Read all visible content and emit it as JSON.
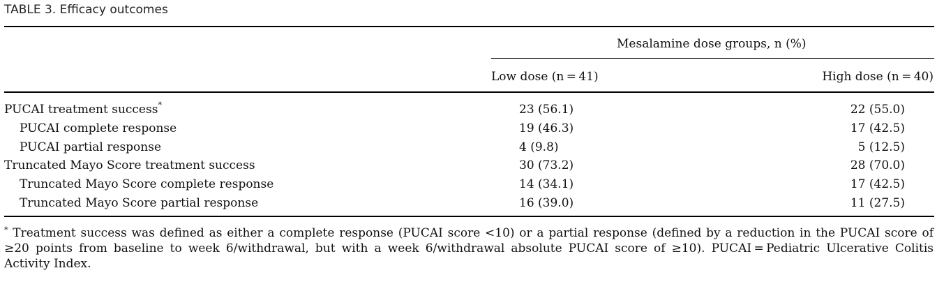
{
  "caption": "TABLE 3.  Efficacy outcomes",
  "header": {
    "group": "Mesalamine dose groups, n (%)",
    "columns": [
      "Low dose (n = 41)",
      "High dose (n = 40)"
    ]
  },
  "rows": [
    {
      "label": "PUCAI treatment success",
      "marker": "*",
      "low": "23 (56.1)",
      "high": "22 (55.0)"
    },
    {
      "label": "PUCAI complete response",
      "marker": "",
      "low": "19 (46.3)",
      "high": "17 (42.5)"
    },
    {
      "label": "PUCAI partial response",
      "marker": "",
      "low": "4 (9.8)",
      "high": "5 (12.5)"
    },
    {
      "label": "Truncated Mayo Score treatment success",
      "marker": "",
      "low": "30 (73.2)",
      "high": "28 (70.0)"
    },
    {
      "label": "Truncated Mayo Score complete response",
      "marker": "",
      "low": "14 (34.1)",
      "high": "17 (42.5)"
    },
    {
      "label": "Truncated Mayo Score partial response",
      "marker": "",
      "low": "16 (39.0)",
      "high": "11 (27.5)"
    }
  ],
  "footnote": {
    "marker": "*",
    "text": "Treatment success was defined as either a complete response (PUCAI score <10) or a partial response (defined by a reduction in the PUCAI score of ≥20 points from baseline to week 6/withdrawal, but with a week 6/withdrawal absolute PUCAI score of ≥10). PUCAI = Pediatric Ulcerative Colitis Activity Index."
  }
}
